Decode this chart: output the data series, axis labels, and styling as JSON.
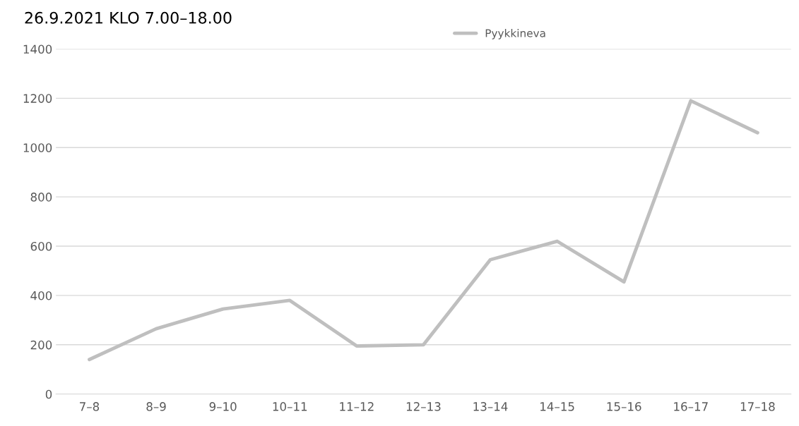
{
  "chart_data": {
    "type": "line",
    "title": "26.9.2021 KLO 7.00–18.00",
    "categories": [
      "7–8",
      "8–9",
      "9–10",
      "10–11",
      "11–12",
      "12–13",
      "13–14",
      "14–15",
      "15–16",
      "16–17",
      "17–18"
    ],
    "series": [
      {
        "name": "Pyykkineva",
        "color": "#bfbfbf",
        "values": [
          140,
          265,
          345,
          380,
          195,
          200,
          545,
          620,
          455,
          1190,
          1060
        ]
      }
    ],
    "ylim": [
      0,
      1400
    ],
    "yticks": [
      0,
      200,
      400,
      600,
      800,
      1000,
      1200,
      1400
    ],
    "grid": "y",
    "legend": "top right",
    "marker": "none",
    "line_style": "solid"
  }
}
